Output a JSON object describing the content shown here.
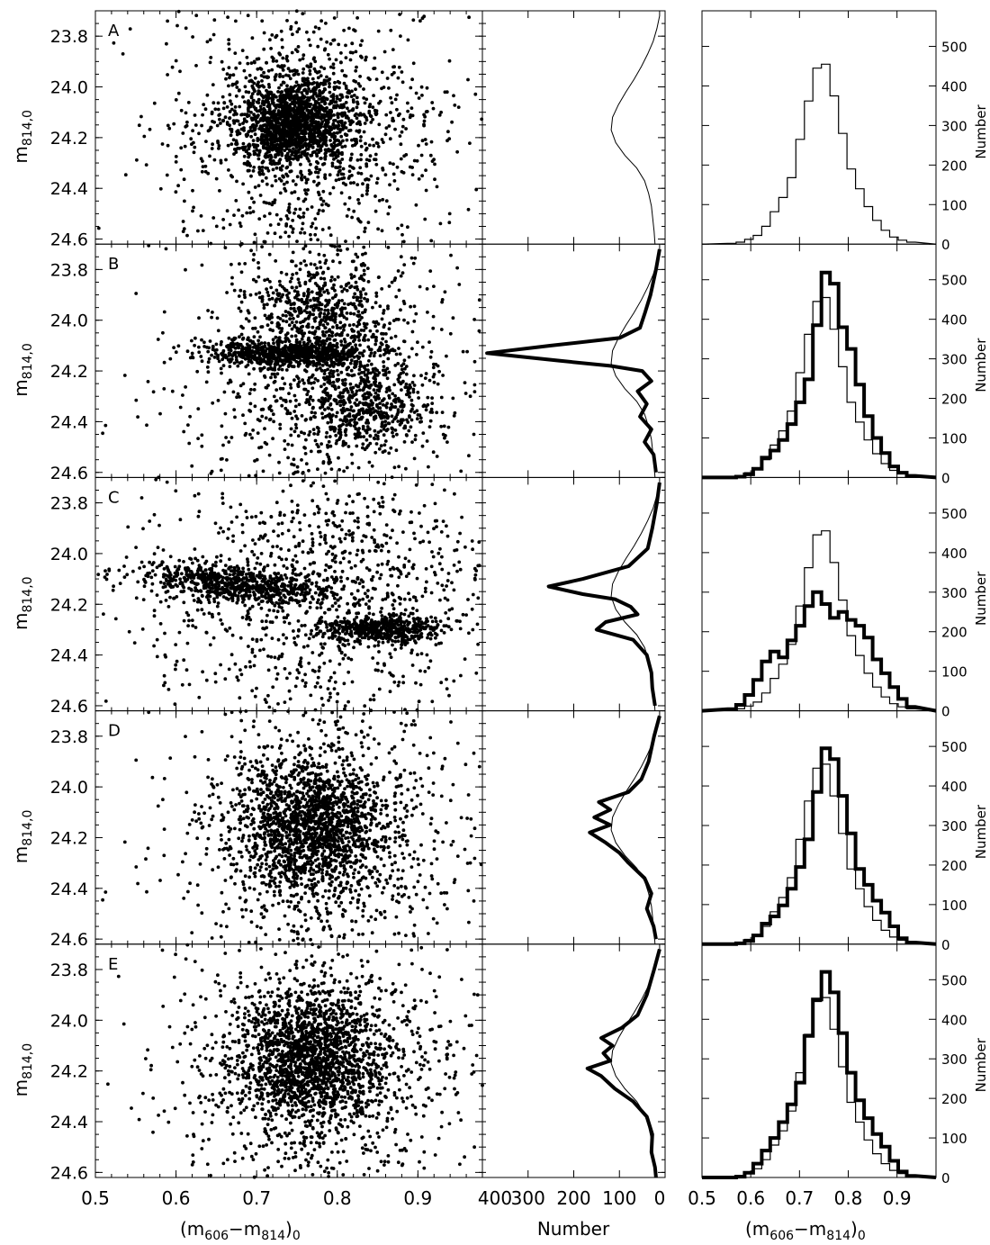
{
  "figure": {
    "cmd_xlabel_main": "(m",
    "cmd_xlabel_sub1": "606",
    "cmd_xlabel_dash": "−m",
    "cmd_xlabel_sub2": "814",
    "cmd_xlabel_close": ")",
    "cmd_xlabel_sub3": "0",
    "lf_xlabel": "Number",
    "hist_ylabel": "Number",
    "cmd_ylabel_main": "m",
    "cmd_ylabel_sub": "814,0"
  },
  "chart_data": {
    "type": "scatter",
    "panels": [
      "A",
      "B",
      "C",
      "D",
      "E"
    ],
    "cmd": {
      "type": "scatter",
      "xlabel": "(m606−m814)0",
      "ylabel": "m814,0",
      "xlim": [
        0.5,
        0.98
      ],
      "ylim": [
        24.62,
        23.7
      ],
      "xticks": [
        0.5,
        0.6,
        0.7,
        0.8,
        0.9
      ],
      "yticks": [
        23.8,
        24.0,
        24.2,
        24.4,
        24.6
      ]
    },
    "luminosity_function": {
      "type": "line",
      "xlabel": "Number",
      "xlim": [
        400,
        0
      ],
      "xticks": [
        400,
        300,
        200,
        100,
        0
      ],
      "ylim": [
        24.62,
        23.7
      ],
      "reference_step": [
        [
          23.72,
          12
        ],
        [
          23.77,
          18
        ],
        [
          23.82,
          26
        ],
        [
          23.87,
          38
        ],
        [
          23.92,
          52
        ],
        [
          23.97,
          68
        ],
        [
          24.02,
          86
        ],
        [
          24.07,
          102
        ],
        [
          24.12,
          115
        ],
        [
          24.17,
          118
        ],
        [
          24.22,
          108
        ],
        [
          24.27,
          88
        ],
        [
          24.32,
          62
        ],
        [
          24.37,
          45
        ],
        [
          24.42,
          36
        ],
        [
          24.47,
          30
        ],
        [
          24.52,
          27
        ],
        [
          24.57,
          24
        ],
        [
          24.62,
          22
        ]
      ],
      "models": {
        "B": [
          [
            23.72,
            12
          ],
          [
            23.8,
            20
          ],
          [
            23.9,
            32
          ],
          [
            23.97,
            44
          ],
          [
            24.03,
            55
          ],
          [
            24.07,
            100
          ],
          [
            24.1,
            250
          ],
          [
            24.13,
            390
          ],
          [
            24.16,
            230
          ],
          [
            24.18,
            120
          ],
          [
            24.2,
            50
          ],
          [
            24.24,
            30
          ],
          [
            24.28,
            60
          ],
          [
            24.33,
            40
          ],
          [
            24.38,
            55
          ],
          [
            24.43,
            30
          ],
          [
            24.48,
            45
          ],
          [
            24.53,
            25
          ],
          [
            24.6,
            20
          ]
        ],
        "C": [
          [
            23.72,
            12
          ],
          [
            23.8,
            18
          ],
          [
            23.9,
            28
          ],
          [
            23.98,
            38
          ],
          [
            24.05,
            80
          ],
          [
            24.1,
            180
          ],
          [
            24.13,
            255
          ],
          [
            24.16,
            180
          ],
          [
            24.18,
            110
          ],
          [
            24.21,
            75
          ],
          [
            24.24,
            60
          ],
          [
            24.27,
            130
          ],
          [
            24.3,
            150
          ],
          [
            24.34,
            70
          ],
          [
            24.4,
            40
          ],
          [
            24.47,
            30
          ],
          [
            24.53,
            28
          ],
          [
            24.6,
            22
          ]
        ],
        "D": [
          [
            23.72,
            12
          ],
          [
            23.8,
            24
          ],
          [
            23.9,
            36
          ],
          [
            23.97,
            52
          ],
          [
            24.02,
            80
          ],
          [
            24.06,
            145
          ],
          [
            24.09,
            120
          ],
          [
            24.12,
            155
          ],
          [
            24.15,
            120
          ],
          [
            24.18,
            165
          ],
          [
            24.22,
            130
          ],
          [
            24.26,
            100
          ],
          [
            24.3,
            80
          ],
          [
            24.36,
            45
          ],
          [
            24.42,
            30
          ],
          [
            24.48,
            40
          ],
          [
            24.55,
            25
          ],
          [
            24.6,
            20
          ]
        ],
        "E": [
          [
            23.72,
            12
          ],
          [
            23.8,
            24
          ],
          [
            23.9,
            40
          ],
          [
            23.98,
            60
          ],
          [
            24.03,
            95
          ],
          [
            24.07,
            140
          ],
          [
            24.1,
            115
          ],
          [
            24.13,
            135
          ],
          [
            24.16,
            120
          ],
          [
            24.19,
            170
          ],
          [
            24.22,
            140
          ],
          [
            24.27,
            110
          ],
          [
            24.32,
            70
          ],
          [
            24.38,
            40
          ],
          [
            24.45,
            28
          ],
          [
            24.52,
            30
          ],
          [
            24.58,
            22
          ],
          [
            24.62,
            20
          ]
        ]
      }
    },
    "color_histogram": {
      "type": "line",
      "xlabel": "(m606−m814)0",
      "ylabel": "Number",
      "xlim": [
        0.5,
        0.98
      ],
      "ylim": [
        0,
        590
      ],
      "xticks": [
        0.5,
        0.6,
        0.7,
        0.8,
        0.9
      ],
      "yticks": [
        0,
        100,
        200,
        300,
        400,
        500
      ],
      "bin_width": 0.0175,
      "bins_start": 0.5525,
      "reference_counts": [
        2,
        5,
        12,
        22,
        45,
        82,
        118,
        168,
        265,
        362,
        445,
        455,
        375,
        280,
        190,
        140,
        95,
        60,
        35,
        18,
        10,
        5
      ],
      "models": {
        "B": [
          0,
          2,
          8,
          22,
          50,
          68,
          95,
          135,
          190,
          248,
          385,
          518,
          490,
          380,
          325,
          235,
          155,
          100,
          62,
          28,
          12,
          4
        ],
        "C": [
          4,
          15,
          40,
          78,
          125,
          150,
          135,
          178,
          215,
          265,
          300,
          270,
          235,
          250,
          230,
          215,
          185,
          130,
          95,
          60,
          30,
          10
        ],
        "D": [
          0,
          2,
          8,
          22,
          52,
          70,
          98,
          140,
          195,
          265,
          385,
          495,
          468,
          375,
          280,
          190,
          150,
          110,
          80,
          45,
          15,
          4
        ],
        "E": [
          0,
          2,
          12,
          35,
          68,
          100,
          140,
          185,
          240,
          358,
          450,
          520,
          468,
          365,
          265,
          195,
          150,
          110,
          78,
          42,
          15,
          4
        ]
      }
    }
  }
}
